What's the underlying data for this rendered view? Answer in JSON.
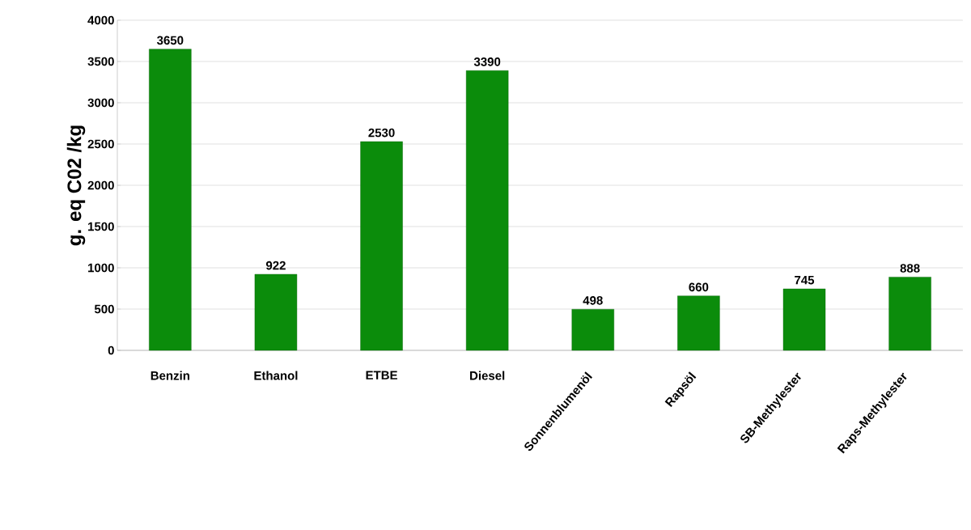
{
  "chart_data": {
    "type": "bar",
    "ylabel": "g. eq C02 /kg",
    "categories": [
      "Benzin",
      "Ethanol",
      "ETBE",
      "Diesel",
      "Sonnenblumenöl",
      "Rapsöl",
      "SB-Methylester",
      "Raps-Methylester"
    ],
    "values": [
      3650,
      922,
      2530,
      3390,
      498,
      660,
      745,
      888
    ],
    "color": "#0b8c0b",
    "ylim": [
      0,
      4000
    ],
    "yticks": [
      0,
      500,
      1000,
      1500,
      2000,
      2500,
      3000,
      3500,
      4000
    ],
    "grid": "y",
    "data_labels": true
  }
}
